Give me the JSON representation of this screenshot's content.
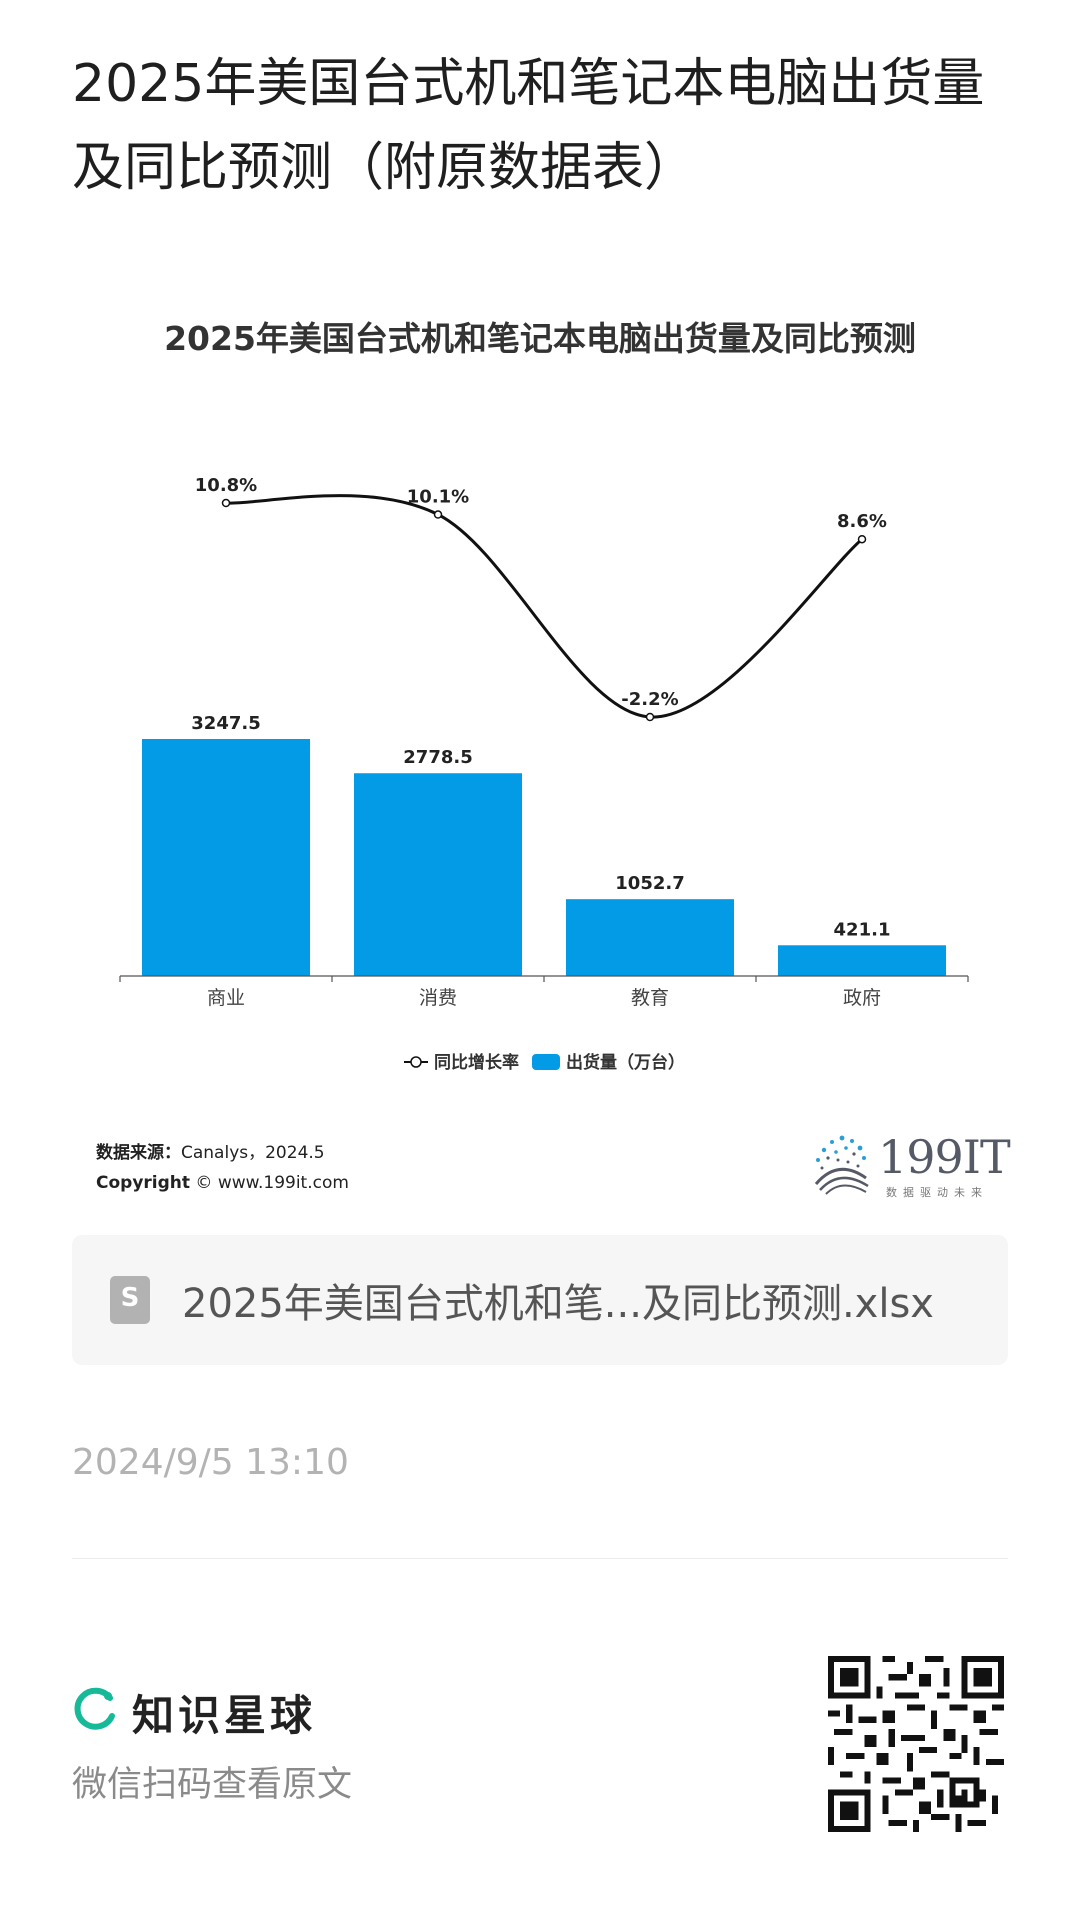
{
  "page": {
    "title": "2025年美国台式机和笔记本电脑出货量及同比预测（附原数据表）"
  },
  "chart_data": {
    "type": "bar",
    "title": "2025年美国台式机和笔记本电脑出货量及同比预测",
    "categories": [
      "商业",
      "消费",
      "教育",
      "政府"
    ],
    "series": [
      {
        "name": "出货量（万台）",
        "type": "bar",
        "values": [
          3247.5,
          2778.5,
          1052.7,
          421.1
        ],
        "labels": [
          "3247.5",
          "2778.5",
          "1052.7",
          "421.1"
        ],
        "color": "#039be5"
      },
      {
        "name": "同比增长率",
        "type": "line",
        "values": [
          10.8,
          10.1,
          -2.2,
          8.6
        ],
        "labels": [
          "10.8%",
          "10.1%",
          "-2.2%",
          "8.6%"
        ],
        "color": "#111111"
      }
    ],
    "legend": {
      "position": "bottom",
      "items": [
        "同比增长率",
        "出货量（万台）"
      ]
    },
    "grid": false
  },
  "source": {
    "label": "数据来源：",
    "value": "Canalys，2024.5",
    "copyright_label": "Copyright",
    "copyright_symbol": "©",
    "copyright_value": "www.199it.com"
  },
  "logo": {
    "text": "199IT",
    "subtitle": "数据驱动未来"
  },
  "attachment": {
    "icon_letter": "S",
    "filename": "2025年美国台式机和笔...及同比预测.xlsx"
  },
  "timestamp": "2024/9/5 13:10",
  "footer": {
    "brand": "知识星球",
    "hint": "微信扫码查看原文",
    "brand_color": "#16b998"
  }
}
